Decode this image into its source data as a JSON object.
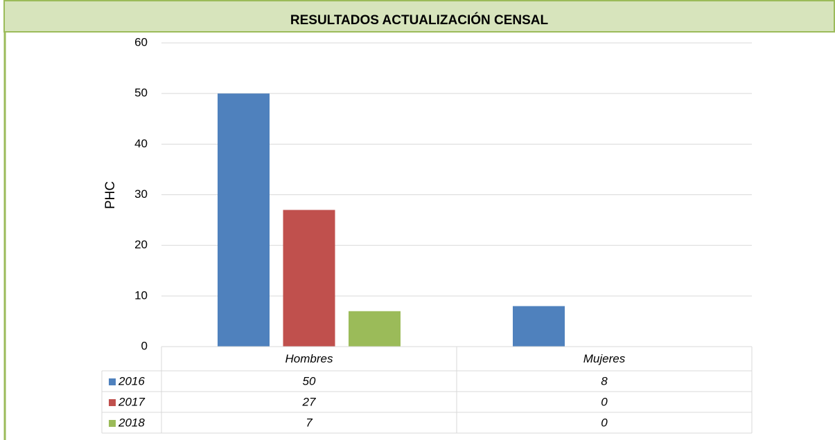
{
  "chart_data": {
    "type": "bar",
    "title": "RESULTADOS ACTUALIZACIÓN CENSAL",
    "y_label": "PHC",
    "categories": [
      "Hombres",
      "Mujeres"
    ],
    "series": [
      {
        "name": "2016",
        "color": "#4f81bd",
        "values": [
          50,
          8
        ]
      },
      {
        "name": "2017",
        "color": "#c0504d",
        "values": [
          27,
          0
        ]
      },
      {
        "name": "2018",
        "color": "#9bbb59",
        "values": [
          7,
          0
        ]
      }
    ],
    "ylim": [
      0,
      60
    ],
    "yticks": [
      0,
      10,
      20,
      30,
      40,
      50,
      60
    ],
    "grid": true
  }
}
